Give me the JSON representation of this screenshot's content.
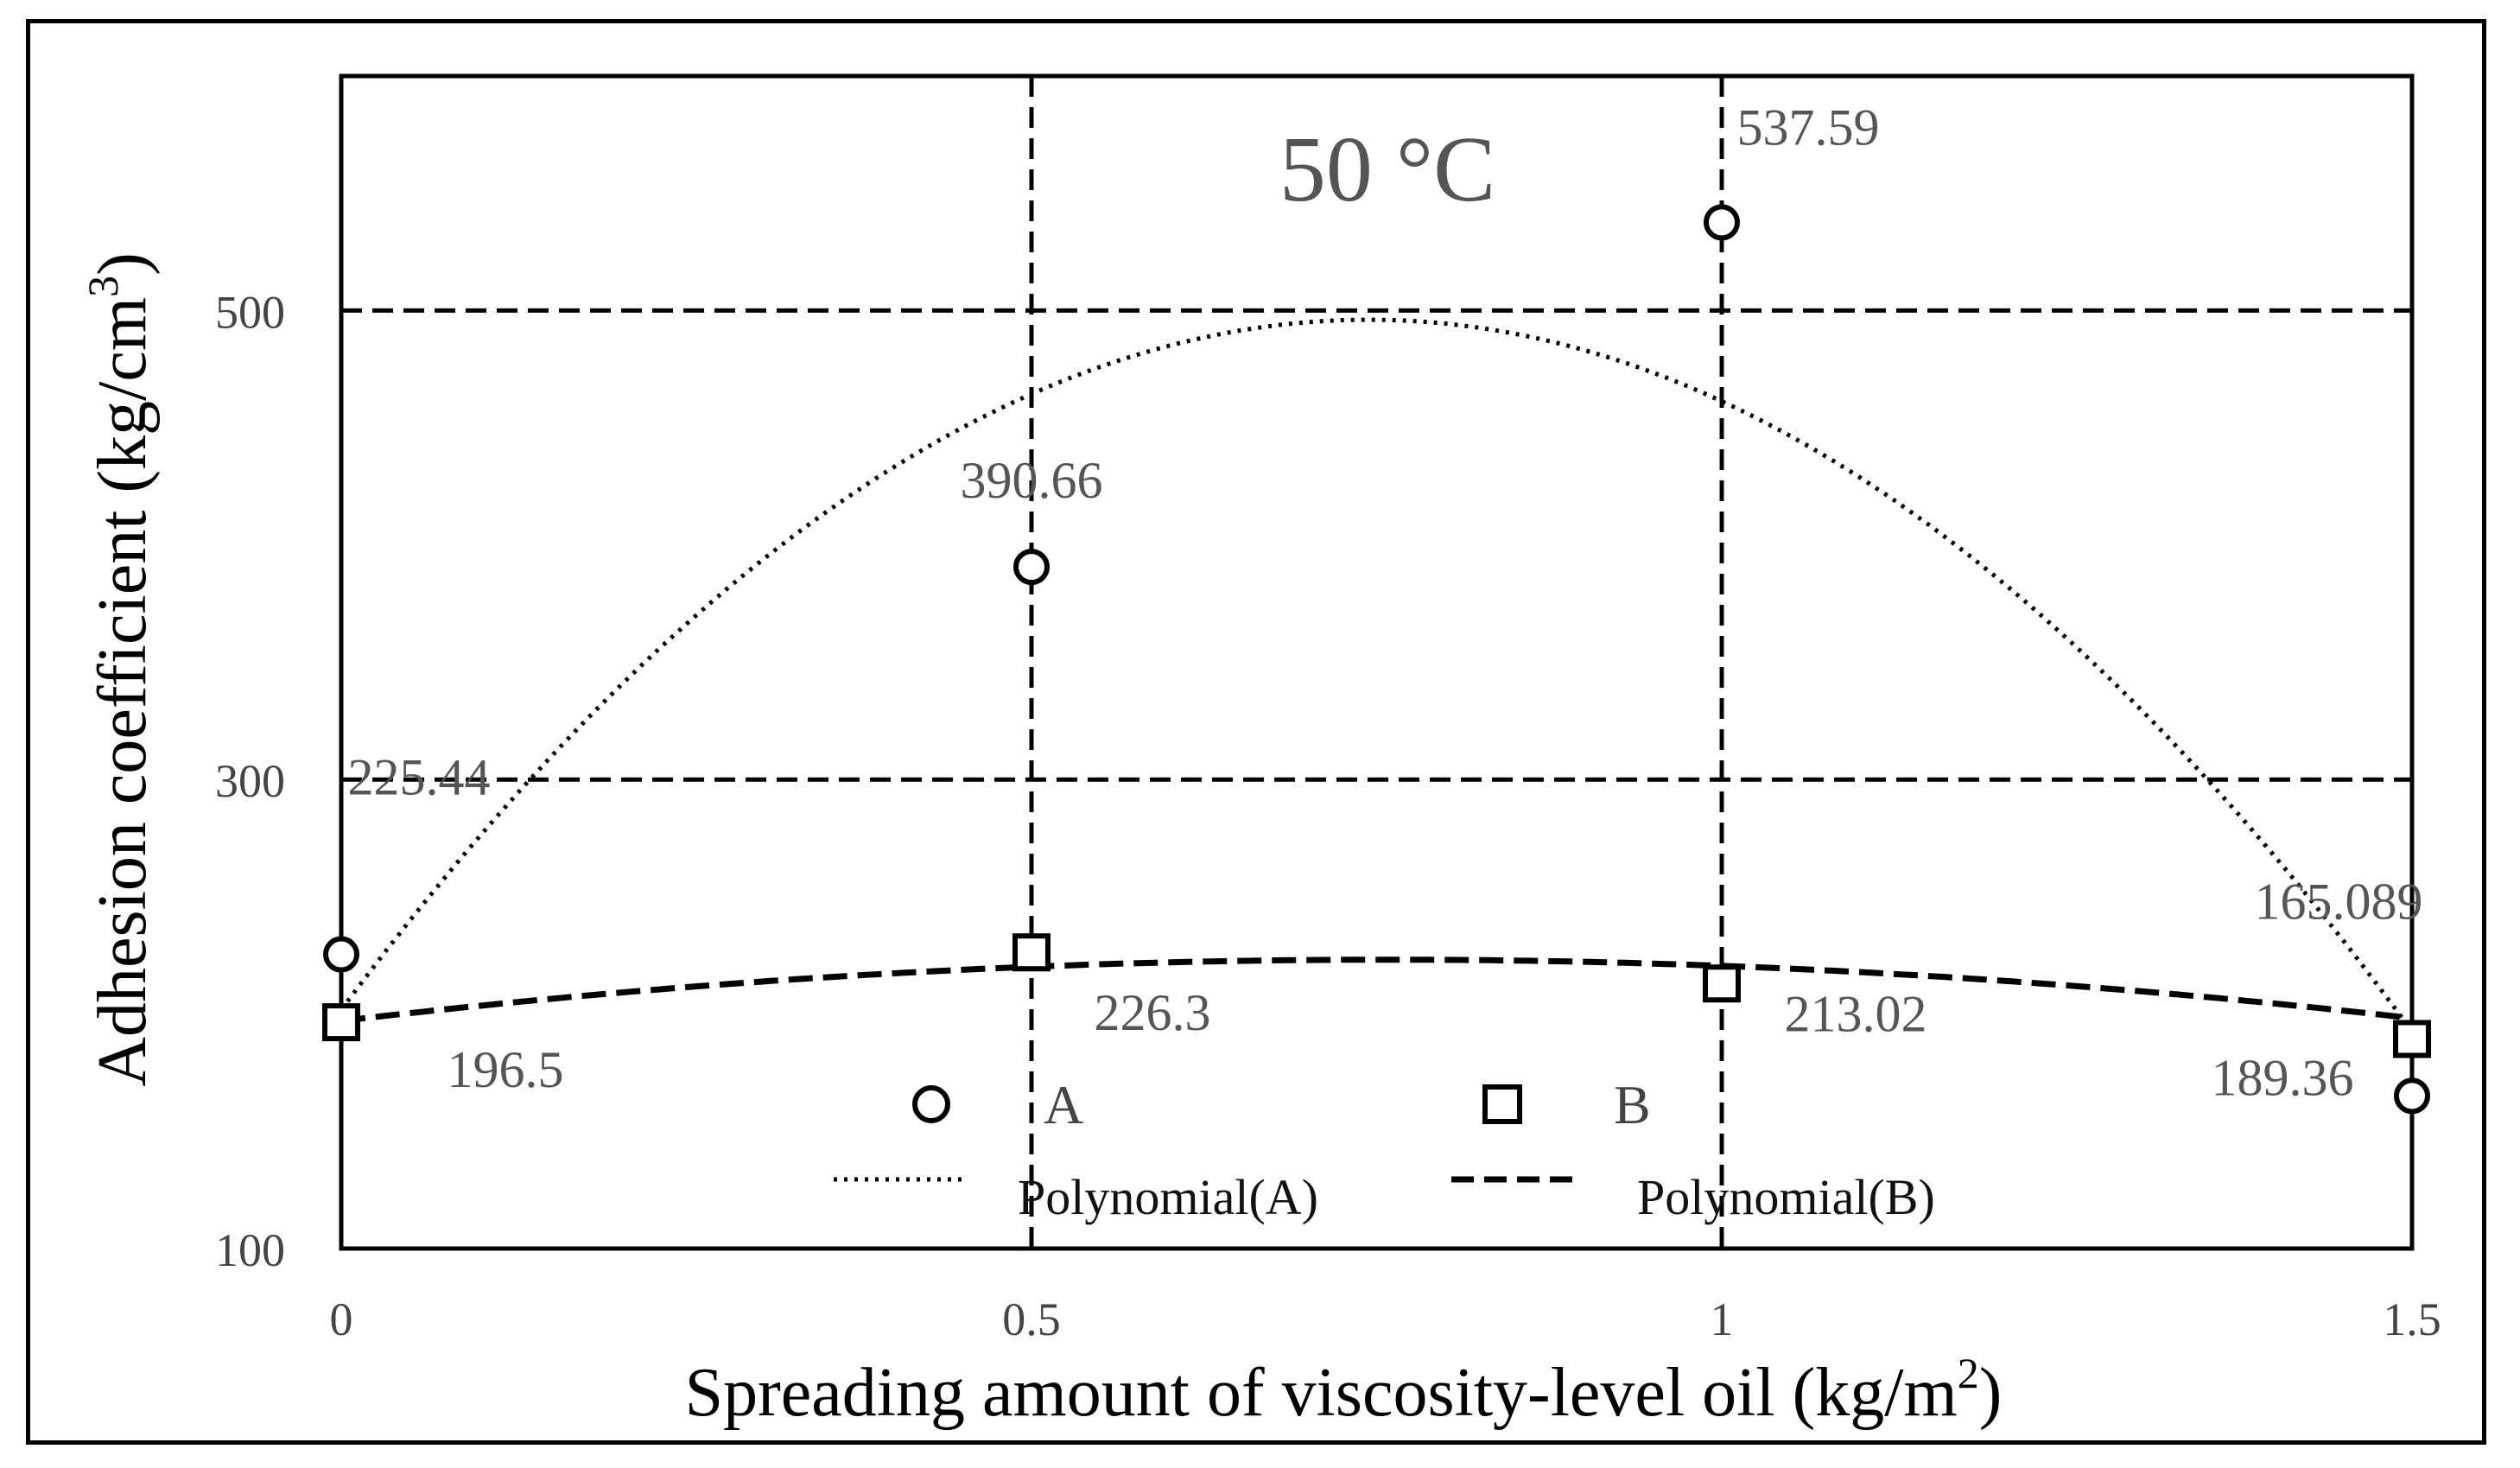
{
  "chart_data": {
    "type": "scatter",
    "annotation": "50 °C",
    "xlabel": "Spreading amount of viscosity-level  oil (kg/m",
    "xlabel_sup": "2",
    "xlabel_end": ")",
    "ylabel": "Adhesion coefficient (kg/cm",
    "ylabel_sup": "3",
    "ylabel_end": ")",
    "xlim": [
      0,
      1.5
    ],
    "ylim": [
      100,
      600
    ],
    "x_ticks": [
      0,
      0.5,
      1,
      1.5
    ],
    "x_tick_labels": [
      "0",
      "0.5",
      "1",
      "1.5"
    ],
    "y_ticks": [
      100,
      300,
      500
    ],
    "y_tick_labels": [
      "100",
      "300",
      "500"
    ],
    "grid": true,
    "series": [
      {
        "name": "A",
        "marker": "circle",
        "x": [
          0,
          0.5,
          1,
          1.5
        ],
        "values": [
          225.44,
          390.66,
          537.59,
          165.089
        ],
        "labels": [
          "225.44",
          "390.66",
          "537.59",
          "165.089"
        ]
      },
      {
        "name": "B",
        "marker": "square",
        "x": [
          0,
          0.5,
          1,
          1.5
        ],
        "values": [
          196.5,
          226.3,
          213.02,
          189.36
        ],
        "labels": [
          "196.5",
          "226.3",
          "213.02",
          "189.36"
        ]
      }
    ],
    "trendlines": [
      {
        "name": "Polynomial(A)",
        "style": "dotted",
        "coeffs": [
          201.87,
          790.65,
          -531.2
        ]
      },
      {
        "name": "Polynomial(B)",
        "style": "dashed",
        "coeffs": [
          197.08,
          68.85,
          -45.39
        ]
      }
    ],
    "legend": [
      "A",
      "B",
      "Polynomial(A)",
      "Polynomial(B)"
    ],
    "legend_position": "bottom-center inside plot"
  }
}
